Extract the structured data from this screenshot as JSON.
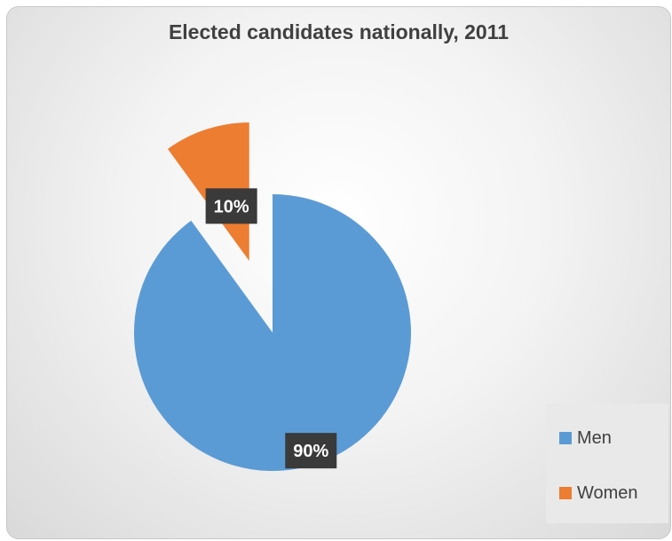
{
  "chart_data": {
    "type": "pie",
    "title": "Elected candidates nationally, 2011",
    "series": [
      {
        "name": "Men",
        "value": 90,
        "label": "90%",
        "color": "#5b9bd5"
      },
      {
        "name": "Women",
        "value": 10,
        "label": "10%",
        "color": "#ed7d31"
      }
    ],
    "legend_position": "bottom-right",
    "exploded": true
  }
}
